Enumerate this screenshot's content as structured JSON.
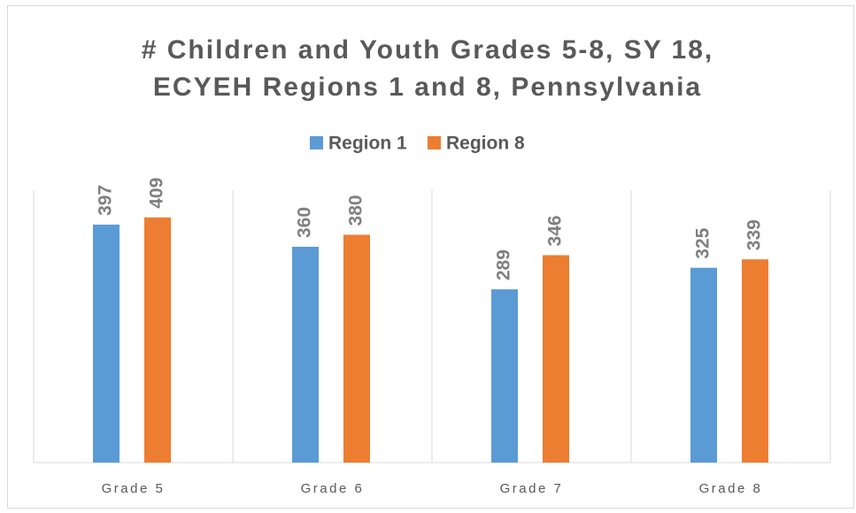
{
  "chart_data": {
    "type": "bar",
    "title": [
      "# Children and Youth Grades 5-8, SY 18,",
      "ECYEH Regions 1 and 8, Pennsylvania"
    ],
    "categories": [
      "Grade 5",
      "Grade 6",
      "Grade 7",
      "Grade 8"
    ],
    "series": [
      {
        "name": "Region 1",
        "color": "#5b9bd5",
        "values": [
          397,
          360,
          289,
          325
        ]
      },
      {
        "name": "Region 8",
        "color": "#ed7d31",
        "values": [
          409,
          380,
          346,
          339
        ]
      }
    ],
    "ylim": [
      0,
      450
    ],
    "legend": "top"
  }
}
